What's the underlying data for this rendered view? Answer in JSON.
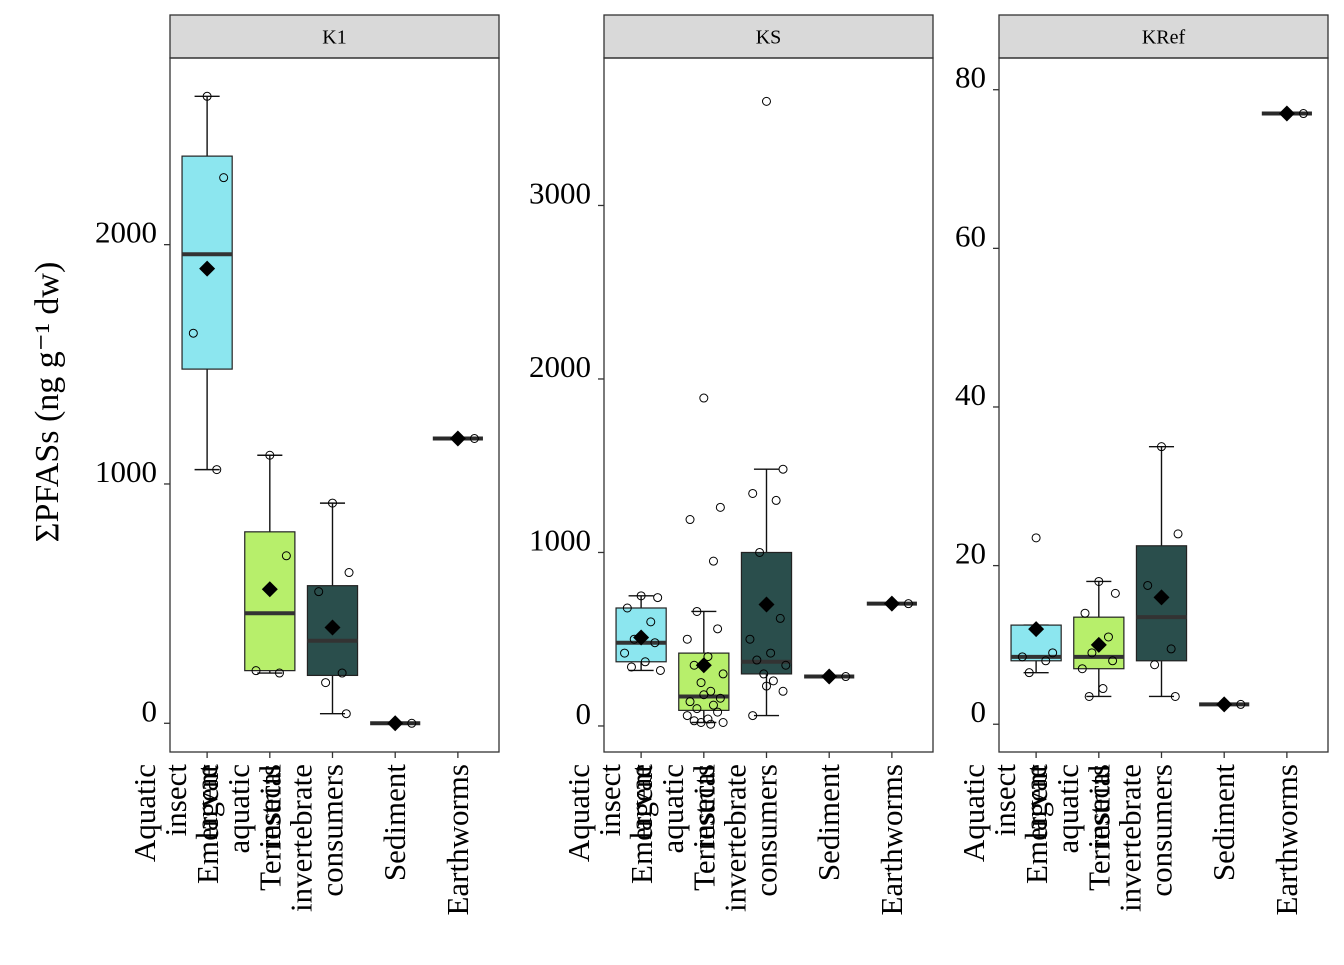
{
  "chart_data": {
    "type": "box",
    "ylabel": "ΣPFASs (ng g⁻¹ dw)",
    "categories": [
      "Aquatic insect larvae",
      "Emergent aquatic insects",
      "Terrestrial invertebrate consumers",
      "Sediment",
      "Earthworms"
    ],
    "tick_label_lines": [
      [
        "Aquatic",
        "insect",
        "larvae"
      ],
      [
        "Emergent",
        "aquatic",
        "insects"
      ],
      [
        "Terrestrial",
        "invertebrate",
        "consumers"
      ],
      [
        "Sediment"
      ],
      [
        "Earthworms"
      ]
    ],
    "colors": {
      "cat_0": "#8ce6ef",
      "cat_1": "#b7ef6b",
      "cat_2": "#2a4e4c",
      "cat_3": "#2a2a2a",
      "cat_4": "#2a2a2a",
      "strip": "#d9d9d9"
    },
    "panels": [
      {
        "name": "K1",
        "ylim": [
          -120,
          2780
        ],
        "yticks": [
          0,
          1000,
          2000
        ],
        "boxes": [
          {
            "q1": 1480,
            "median": 1960,
            "q3": 2370,
            "whisker_low": 1060,
            "whisker_high": 2620,
            "mean": 1900,
            "points": [
              2620,
              2280,
              1630,
              1060
            ]
          },
          {
            "q1": 220,
            "median": 460,
            "q3": 800,
            "whisker_low": 210,
            "whisker_high": 1120,
            "mean": 560,
            "points": [
              1120,
              700,
              220,
              210
            ]
          },
          {
            "q1": 200,
            "median": 345,
            "q3": 575,
            "whisker_low": 40,
            "whisker_high": 920,
            "mean": 400,
            "points": [
              920,
              630,
              550,
              210,
              170,
              40
            ]
          },
          {
            "q1": 0,
            "median": 0,
            "q3": 0,
            "whisker_low": 0,
            "whisker_high": 0,
            "mean": 0,
            "points": [
              0,
              0
            ]
          },
          {
            "q1": 1190,
            "median": 1190,
            "q3": 1190,
            "whisker_low": 1190,
            "whisker_high": 1190,
            "mean": 1190,
            "points": [
              1190,
              1190
            ]
          }
        ]
      },
      {
        "name": "KS",
        "ylim": [
          -150,
          3850
        ],
        "yticks": [
          0,
          1000,
          2000,
          3000
        ],
        "boxes": [
          {
            "q1": 370,
            "median": 480,
            "q3": 680,
            "whisker_low": 320,
            "whisker_high": 750,
            "mean": 510,
            "points": [
              750,
              740,
              680,
              600,
              500,
              480,
              420,
              370,
              340,
              320
            ]
          },
          {
            "q1": 90,
            "median": 170,
            "q3": 420,
            "whisker_low": 20,
            "whisker_high": 660,
            "mean": 350,
            "points": [
              1890,
              1260,
              1190,
              950,
              660,
              560,
              500,
              400,
              350,
              300,
              250,
              200,
              180,
              160,
              140,
              120,
              100,
              80,
              60,
              40,
              30,
              20,
              20,
              10
            ]
          },
          {
            "q1": 300,
            "median": 370,
            "q3": 1000,
            "whisker_low": 60,
            "whisker_high": 1480,
            "mean": 700,
            "points": [
              3600,
              1480,
              1340,
              1300,
              1000,
              620,
              500,
              420,
              380,
              350,
              300,
              260,
              230,
              200,
              60
            ]
          },
          {
            "q1": 285,
            "median": 285,
            "q3": 285,
            "whisker_low": 285,
            "whisker_high": 285,
            "mean": 285,
            "points": [
              285,
              285
            ]
          },
          {
            "q1": 705,
            "median": 705,
            "q3": 705,
            "whisker_low": 705,
            "whisker_high": 705,
            "mean": 705,
            "points": [
              705,
              705
            ]
          }
        ]
      },
      {
        "name": "KRef",
        "ylim": [
          -3.5,
          84
        ],
        "yticks": [
          0,
          20,
          40,
          60,
          80
        ],
        "boxes": [
          {
            "q1": 8,
            "median": 8.5,
            "q3": 12.5,
            "whisker_low": 6.5,
            "whisker_high": 12.5,
            "mean": 12,
            "points": [
              23.5,
              9,
              8.5,
              8,
              6.5
            ]
          },
          {
            "q1": 7,
            "median": 8.5,
            "q3": 13.5,
            "whisker_low": 3.5,
            "whisker_high": 18,
            "mean": 10,
            "points": [
              18,
              16.5,
              14,
              11,
              9,
              8,
              7,
              4.5,
              3.5
            ]
          },
          {
            "q1": 8,
            "median": 13.5,
            "q3": 22.5,
            "whisker_low": 3.5,
            "whisker_high": 35,
            "mean": 16,
            "points": [
              35,
              24,
              17.5,
              9.5,
              7.5,
              3.5
            ]
          },
          {
            "q1": 2.5,
            "median": 2.5,
            "q3": 2.5,
            "whisker_low": 2.5,
            "whisker_high": 2.5,
            "mean": 2.5,
            "points": [
              2.5,
              2.5
            ]
          },
          {
            "q1": 77,
            "median": 77,
            "q3": 77,
            "whisker_low": 77,
            "whisker_high": 77,
            "mean": 77,
            "points": [
              77,
              77
            ]
          }
        ]
      }
    ]
  }
}
